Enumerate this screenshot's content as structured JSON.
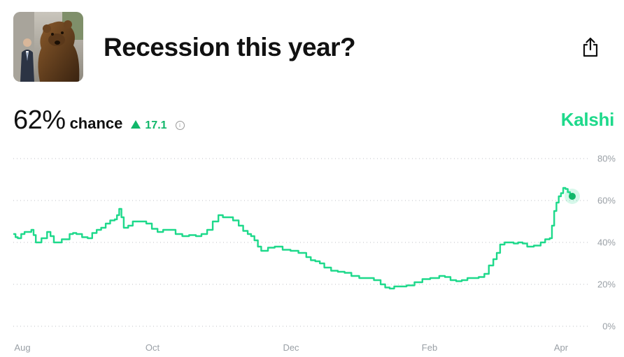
{
  "header": {
    "title": "Recession this year?"
  },
  "stats": {
    "percent": "62%",
    "chance_label": "chance",
    "delta": "17.1",
    "delta_color": "#11b76a"
  },
  "brand": {
    "name": "Kalshi",
    "color": "#1ed98b"
  },
  "icons": {
    "share": "share-icon",
    "info": "info-icon"
  },
  "chart_data": {
    "type": "line",
    "title": "",
    "xlabel": "",
    "ylabel": "",
    "x_ticks": [
      "Aug",
      "Oct",
      "Dec",
      "Feb",
      "Apr"
    ],
    "y_ticks": [
      "80%",
      "60%",
      "40%",
      "20%",
      "0%"
    ],
    "ylim": [
      0,
      80
    ],
    "grid": true,
    "line_color": "#1ed98b",
    "series": [
      {
        "points": [
          [
            "Jul 31",
            44
          ],
          [
            "Aug 2",
            42
          ],
          [
            "Aug 5",
            45
          ],
          [
            "Aug 8",
            46
          ],
          [
            "Aug 10",
            40
          ],
          [
            "Aug 15",
            45
          ],
          [
            "Aug 18",
            40
          ],
          [
            "Aug 25",
            44
          ],
          [
            "Aug 28",
            44
          ],
          [
            "Sep 2",
            42
          ],
          [
            "Sep 6",
            46
          ],
          [
            "Sep 10",
            49
          ],
          [
            "Sep 14",
            51
          ],
          [
            "Sep 16",
            56
          ],
          [
            "Sep 18",
            47
          ],
          [
            "Sep 22",
            50
          ],
          [
            "Sep 28",
            49
          ],
          [
            "Oct 3",
            45
          ],
          [
            "Oct 8",
            46
          ],
          [
            "Oct 14",
            43
          ],
          [
            "Oct 20",
            43
          ],
          [
            "Oct 25",
            46
          ],
          [
            "Oct 30",
            53
          ],
          [
            "Nov 3",
            52
          ],
          [
            "Nov 8",
            48
          ],
          [
            "Nov 12",
            44
          ],
          [
            "Nov 15",
            41
          ],
          [
            "Nov 18",
            36
          ],
          [
            "Nov 24",
            38
          ],
          [
            "Dec 1",
            36
          ],
          [
            "Dec 8",
            33
          ],
          [
            "Dec 12",
            31
          ],
          [
            "Dec 16",
            28
          ],
          [
            "Dec 22",
            26
          ],
          [
            "Dec 28",
            24
          ],
          [
            "Jan 4",
            23
          ],
          [
            "Jan 10",
            20
          ],
          [
            "Jan 14",
            18
          ],
          [
            "Jan 18",
            19
          ],
          [
            "Jan 25",
            21
          ],
          [
            "Feb 1",
            23
          ],
          [
            "Feb 5",
            24
          ],
          [
            "Feb 10",
            22
          ],
          [
            "Feb 15",
            22
          ],
          [
            "Feb 20",
            23
          ],
          [
            "Feb 25",
            25
          ],
          [
            "Mar 1",
            32
          ],
          [
            "Mar 4",
            39
          ],
          [
            "Mar 8",
            40
          ],
          [
            "Mar 12",
            40
          ],
          [
            "Mar 16",
            38
          ],
          [
            "Mar 22",
            40
          ],
          [
            "Mar 26",
            42
          ],
          [
            "Mar 28",
            55
          ],
          [
            "Mar 30",
            62
          ],
          [
            "Apr 1",
            66
          ],
          [
            "Apr 3",
            64
          ],
          [
            "Apr 5",
            62
          ]
        ]
      }
    ],
    "current": {
      "x": "Apr 5",
      "y": 62
    }
  }
}
